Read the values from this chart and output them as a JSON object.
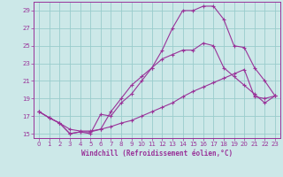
{
  "xlabel": "Windchill (Refroidissement éolien,°C)",
  "background_color": "#cce8e8",
  "grid_color": "#99cccc",
  "line_color": "#993399",
  "xlim": [
    -0.5,
    23.5
  ],
  "ylim": [
    14.5,
    30.0
  ],
  "yticks": [
    15,
    17,
    19,
    21,
    23,
    25,
    27,
    29
  ],
  "xticks": [
    0,
    1,
    2,
    3,
    4,
    5,
    6,
    7,
    8,
    9,
    10,
    11,
    12,
    13,
    14,
    15,
    16,
    17,
    18,
    19,
    20,
    21,
    22,
    23
  ],
  "series": [
    {
      "x": [
        0,
        1,
        2,
        3,
        4,
        5,
        6,
        7,
        8,
        9,
        10,
        11,
        12,
        13,
        14,
        15,
        16,
        17,
        18,
        19,
        20,
        21,
        22,
        23
      ],
      "y": [
        17.5,
        16.8,
        16.2,
        15.0,
        15.2,
        15.0,
        17.2,
        17.0,
        18.5,
        19.5,
        21.0,
        22.5,
        24.5,
        27.0,
        29.0,
        29.0,
        29.5,
        29.5,
        28.0,
        25.0,
        24.8,
        22.5,
        21.0,
        19.3
      ]
    },
    {
      "x": [
        0,
        1,
        2,
        3,
        4,
        5,
        6,
        7,
        8,
        9,
        10,
        11,
        12,
        13,
        14,
        15,
        16,
        17,
        18,
        19,
        20,
        21,
        22,
        23
      ],
      "y": [
        17.5,
        16.8,
        16.2,
        15.5,
        15.3,
        15.3,
        15.5,
        17.5,
        19.0,
        20.5,
        21.5,
        22.5,
        23.5,
        24.0,
        24.5,
        24.5,
        25.3,
        25.0,
        22.5,
        21.5,
        20.5,
        19.5,
        18.5,
        19.3
      ]
    },
    {
      "x": [
        0,
        1,
        2,
        3,
        4,
        5,
        6,
        7,
        8,
        9,
        10,
        11,
        12,
        13,
        14,
        15,
        16,
        17,
        18,
        19,
        20,
        21,
        22,
        23
      ],
      "y": [
        17.5,
        16.8,
        16.2,
        15.0,
        15.2,
        15.2,
        15.5,
        15.8,
        16.2,
        16.5,
        17.0,
        17.5,
        18.0,
        18.5,
        19.2,
        19.8,
        20.3,
        20.8,
        21.3,
        21.8,
        22.3,
        19.2,
        19.0,
        19.3
      ]
    }
  ]
}
